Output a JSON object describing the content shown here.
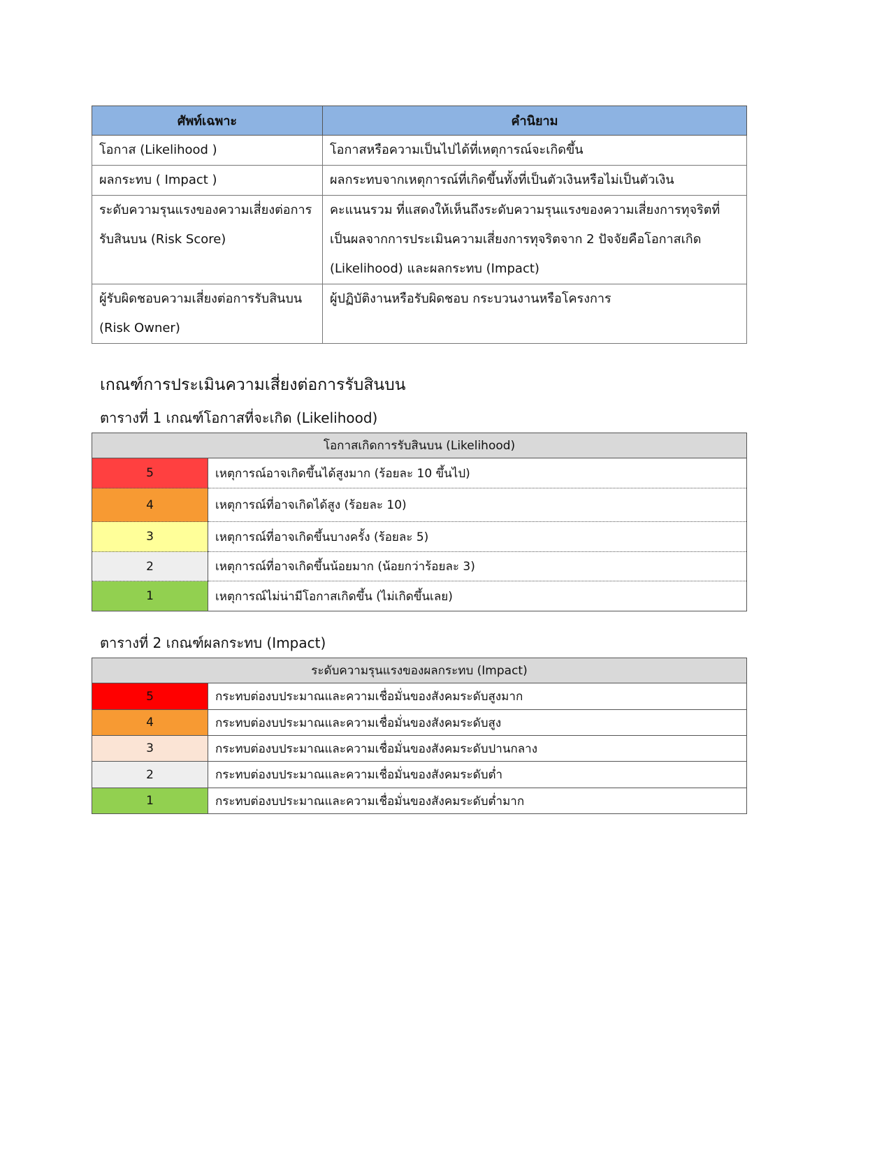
{
  "terms_table": {
    "headers": [
      "ศัพท์เฉพาะ",
      "คำนิยาม"
    ],
    "rows": [
      {
        "term": "โอกาส (Likelihood )",
        "definition": "โอกาสหรือความเป็นไปได้ที่เหตุการณ์จะเกิดขึ้น"
      },
      {
        "term": "ผลกระทบ ( Impact )",
        "definition": "ผลกระทบจากเหตุการณ์ที่เกิดขึ้นทั้งที่เป็นตัวเงินหรือไม่เป็นตัวเงิน"
      },
      {
        "term": "ระดับความรุนแรงของความเสี่ยงต่อการรับสินบน  (Risk Score)",
        "definition": "คะแนนรวม ที่แสดงให้เห็นถึงระดับความรุนแรงของความเสี่ยงการทุจริตที่เป็นผลจากการประเมินความเสี่ยงการทุจริตจาก 2 ปัจจัยคือโอกาสเกิด (Likelihood) และผลกระทบ (Impact)"
      },
      {
        "term": "ผู้รับผิดชอบความเสี่ยงต่อการรับสินบน (Risk Owner)",
        "definition": "ผู้ปฏิบัติงานหรือรับผิดชอบ กระบวนงานหรือโครงการ"
      }
    ]
  },
  "section_title": "เกณฑ์การประเมินความเสี่ยงต่อการรับสินบน",
  "likelihood": {
    "caption": "ตารางที่ 1  เกณฑ์โอกาสที่จะเกิด (Likelihood)",
    "header": "โอกาสเกิดการรับสินบน (Likelihood)",
    "rows": [
      {
        "level": "5",
        "color": "#ff4040",
        "text": "เหตุการณ์อาจเกิดขึ้นได้สูงมาก (ร้อยละ 10 ขึ้นไป)"
      },
      {
        "level": "4",
        "color": "#f79a33",
        "text": "เหตุการณ์ที่อาจเกิดได้สูง (ร้อยละ 10)"
      },
      {
        "level": "3",
        "color": "#ffff99",
        "text": "เหตุการณ์ที่อาจเกิดขึ้นบางครั้ง (ร้อยละ 5)"
      },
      {
        "level": "2",
        "color": "#eeeeee",
        "text": "เหตุการณ์ที่อาจเกิดขึ้นน้อยมาก (น้อยกว่าร้อยละ 3)"
      },
      {
        "level": "1",
        "color": "#92d050",
        "text": "เหตุการณ์ไม่น่ามีโอกาสเกิดขึ้น (ไม่เกิดขึ้นเลย)"
      }
    ]
  },
  "impact": {
    "caption": "ตารางที่ 2 เกณฑ์ผลกระทบ (Impact)",
    "header": "ระดับความรุนแรงของผลกระทบ (Impact)",
    "rows": [
      {
        "level": "5",
        "color": "#ff0000",
        "text": "กระทบต่องบประมาณและความเชื่อมั่นของสังคมระดับสูงมาก"
      },
      {
        "level": "4",
        "color": "#f79a33",
        "text": "กระทบต่องบประมาณและความเชื่อมั่นของสังคมระดับสูง"
      },
      {
        "level": "3",
        "color": "#fbe4d5",
        "text": "กระทบต่องบประมาณและความเชื่อมั่นของสังคมระดับปานกลาง"
      },
      {
        "level": "2",
        "color": "#eeeeee",
        "text": "กระทบต่องบประมาณและความเชื่อมั่นของสังคมระดับต่ำ"
      },
      {
        "level": "1",
        "color": "#92d050",
        "text": "กระทบต่องบประมาณและความเชื่อมั่นของสังคมระดับต่ำมาก"
      }
    ]
  }
}
